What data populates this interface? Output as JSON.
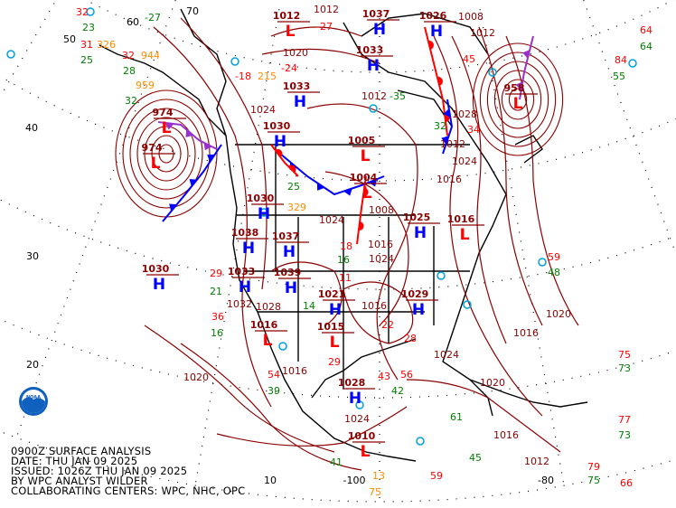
{
  "caption": {
    "line1": "0900Z SURFACE ANALYSIS",
    "line2": "DATE: THU JAN 09 2025",
    "line3": "ISSUED: 1026Z THU JAN 09 2025",
    "line4": "BY WPC ANALYST WILDER",
    "line5": "COLLABORATING CENTERS: WPC, NHC, OPC"
  },
  "logo": {
    "text": "NOAA",
    "icon": "noaa-logo"
  },
  "latitude_labels": [
    "70",
    "60",
    "50",
    "40",
    "30",
    "20",
    "10"
  ],
  "longitude_labels": [
    "-100",
    "-80"
  ],
  "colors": {
    "isobar": "#8b0000",
    "high": "#0000ff",
    "low": "#ff0000",
    "cold_front": "#0000ff",
    "warm_front": "#ff0000",
    "occluded_front": "#9932cc",
    "temperature": "#ff0000",
    "dewpoint": "#008000",
    "pressure_obs": "#ff8c00",
    "station": "#00a0e0"
  },
  "pressure_centers": [
    {
      "type": "H",
      "pressure": "1037"
    },
    {
      "type": "H",
      "pressure": "1033"
    },
    {
      "type": "H",
      "pressure": "1033"
    },
    {
      "type": "H",
      "pressure": "1030"
    },
    {
      "type": "L",
      "pressure": "1012"
    },
    {
      "type": "L",
      "pressure": "974"
    },
    {
      "type": "L",
      "pressure": "974"
    },
    {
      "type": "H",
      "pressure": "1026"
    },
    {
      "type": "L",
      "pressure": "958"
    },
    {
      "type": "L",
      "pressure": "1005"
    },
    {
      "type": "L",
      "pressure": "1004"
    },
    {
      "type": "H",
      "pressure": "1030"
    },
    {
      "type": "H",
      "pressure": "1038"
    },
    {
      "type": "H",
      "pressure": "1037"
    },
    {
      "type": "H",
      "pressure": "1039"
    },
    {
      "type": "H",
      "pressure": "1033"
    },
    {
      "type": "H",
      "pressure": "1030"
    },
    {
      "type": "H",
      "pressure": "1025"
    },
    {
      "type": "H",
      "pressure": "1021"
    },
    {
      "type": "L",
      "pressure": "1015"
    },
    {
      "type": "L",
      "pressure": "1016"
    },
    {
      "type": "H",
      "pressure": "1029"
    },
    {
      "type": "H",
      "pressure": "1028"
    },
    {
      "type": "L",
      "pressure": "1010"
    },
    {
      "type": "L",
      "pressure": "1016"
    }
  ],
  "isobar_labels": [
    "1012",
    "1020",
    "1008",
    "1012",
    "1024",
    "1028",
    "1024",
    "1020",
    "1016",
    "1020",
    "1024",
    "1016",
    "1024",
    "1024",
    "1016",
    "1012",
    "1012",
    "1016",
    "1008",
    "1012",
    "1020",
    "1016",
    "1024",
    "1032",
    "1028",
    "1016"
  ],
  "station_obs": [
    {
      "v": "32",
      "k": "temperature"
    },
    {
      "v": "23",
      "k": "dewpoint"
    },
    {
      "v": "31",
      "k": "temperature"
    },
    {
      "v": "326",
      "k": "pressure_obs"
    },
    {
      "v": "25",
      "k": "dewpoint"
    },
    {
      "v": "32",
      "k": "temperature"
    },
    {
      "v": "944",
      "k": "pressure_obs"
    },
    {
      "v": "28",
      "k": "dewpoint"
    },
    {
      "v": "959",
      "k": "pressure_obs"
    },
    {
      "v": "32",
      "k": "dewpoint"
    },
    {
      "v": "-27",
      "k": "dewpoint"
    },
    {
      "v": "-18",
      "k": "temperature"
    },
    {
      "v": "215",
      "k": "pressure_obs"
    },
    {
      "v": "-24",
      "k": "temperature"
    },
    {
      "v": "-27",
      "k": "temperature"
    },
    {
      "v": "-35",
      "k": "dewpoint"
    },
    {
      "v": "45",
      "k": "temperature"
    },
    {
      "v": "34",
      "k": "temperature"
    },
    {
      "v": "32",
      "k": "dewpoint"
    },
    {
      "v": "64",
      "k": "temperature"
    },
    {
      "v": "64",
      "k": "dewpoint"
    },
    {
      "v": "84",
      "k": "temperature"
    },
    {
      "v": "55",
      "k": "dewpoint"
    },
    {
      "v": "59",
      "k": "temperature"
    },
    {
      "v": "48",
      "k": "dewpoint"
    },
    {
      "v": "18",
      "k": "temperature"
    },
    {
      "v": "16",
      "k": "dewpoint"
    },
    {
      "v": "11",
      "k": "temperature"
    },
    {
      "v": "22",
      "k": "temperature"
    },
    {
      "v": "28",
      "k": "temperature"
    },
    {
      "v": "56",
      "k": "temperature"
    },
    {
      "v": "42",
      "k": "dewpoint"
    },
    {
      "v": "29",
      "k": "temperature"
    },
    {
      "v": "43",
      "k": "temperature"
    },
    {
      "v": "75",
      "k": "temperature"
    },
    {
      "v": "73",
      "k": "dewpoint"
    },
    {
      "v": "77",
      "k": "temperature"
    },
    {
      "v": "73",
      "k": "dewpoint"
    },
    {
      "v": "79",
      "k": "temperature"
    },
    {
      "v": "75",
      "k": "dewpoint"
    },
    {
      "v": "66",
      "k": "temperature"
    },
    {
      "v": "59",
      "k": "temperature"
    },
    {
      "v": "61",
      "k": "dewpoint"
    },
    {
      "v": "45",
      "k": "dewpoint"
    },
    {
      "v": "36",
      "k": "temperature"
    },
    {
      "v": "16",
      "k": "dewpoint"
    },
    {
      "v": "21",
      "k": "dewpoint"
    },
    {
      "v": "29",
      "k": "temperature"
    },
    {
      "v": "329",
      "k": "pressure_obs"
    },
    {
      "v": "25",
      "k": "dewpoint"
    },
    {
      "v": "14",
      "k": "dewpoint"
    },
    {
      "v": "54",
      "k": "temperature"
    },
    {
      "v": "39",
      "k": "dewpoint"
    },
    {
      "v": "13",
      "k": "pressure_obs"
    },
    {
      "v": "41",
      "k": "dewpoint"
    },
    {
      "v": "75",
      "k": "pressure_obs"
    }
  ]
}
